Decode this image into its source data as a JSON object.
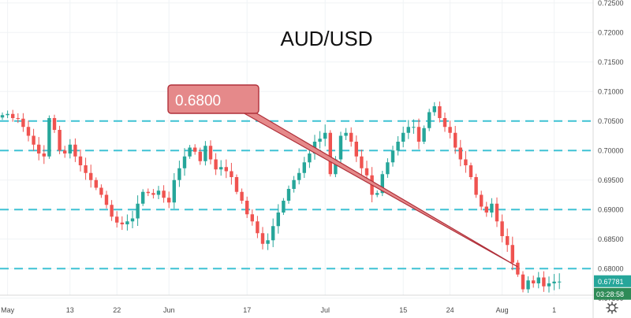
{
  "chart_data": {
    "type": "candlestick",
    "title": "AUD/USD",
    "y_axis_position": "right",
    "ylim": [
      0.6755,
      0.7255
    ],
    "y_ticks": [
      "0.72500",
      "0.72000",
      "0.71500",
      "0.71000",
      "0.70500",
      "0.70000",
      "0.69500",
      "0.69000",
      "0.68500",
      "0.68000",
      "0.67500"
    ],
    "y_tick_values": [
      0.725,
      0.72,
      0.715,
      0.71,
      0.705,
      0.7,
      0.695,
      0.69,
      0.685,
      0.68,
      0.675
    ],
    "x_ticks": [
      "May",
      "13",
      "22",
      "Jun",
      "17",
      "Jul",
      "15",
      "24",
      "Aug",
      "1"
    ],
    "x_tick_bars": [
      1,
      13,
      22,
      32,
      47,
      62,
      77,
      86,
      96,
      106
    ],
    "n_bars": 108,
    "horizontal_levels": [
      0.705,
      0.7,
      0.69,
      0.68
    ],
    "close": [
      0.706,
      0.7062,
      0.7055,
      0.7054,
      0.704,
      0.7025,
      0.701,
      0.6995,
      0.699,
      0.7055,
      0.7035,
      0.7,
      0.6995,
      0.701,
      0.699,
      0.6975,
      0.6962,
      0.695,
      0.6937,
      0.6925,
      0.6908,
      0.6888,
      0.6878,
      0.6875,
      0.688,
      0.6885,
      0.691,
      0.693,
      0.6928,
      0.6925,
      0.6932,
      0.692,
      0.6912,
      0.695,
      0.697,
      0.699,
      0.7005,
      0.6998,
      0.6982,
      0.7008,
      0.6985,
      0.6968,
      0.6972,
      0.6965,
      0.6955,
      0.693,
      0.6915,
      0.6892,
      0.688,
      0.686,
      0.6842,
      0.6848,
      0.6872,
      0.6895,
      0.6915,
      0.6935,
      0.695,
      0.6962,
      0.698,
      0.6995,
      0.7015,
      0.702,
      0.703,
      0.696,
      0.6985,
      0.7025,
      0.703,
      0.7015,
      0.699,
      0.697,
      0.6958,
      0.6925,
      0.6928,
      0.696,
      0.698,
      0.7,
      0.7015,
      0.703,
      0.704,
      0.704,
      0.7015,
      0.7038,
      0.7065,
      0.7075,
      0.7055,
      0.704,
      0.703,
      0.7005,
      0.6985,
      0.6975,
      0.6955,
      0.6925,
      0.6905,
      0.6895,
      0.691,
      0.688,
      0.6855,
      0.684,
      0.681,
      0.679,
      0.6765,
      0.678,
      0.6775,
      0.6785,
      0.677,
      0.6775,
      0.6778,
      0.6778
    ],
    "last_price": "0.67781",
    "countdown": "03:28:58",
    "annotation": {
      "text": "0.6800",
      "from_bar": 20,
      "from_price": 0.7089,
      "to_bar": 99,
      "to_price": 0.6803
    }
  },
  "colors": {
    "up": "#26a69a",
    "down": "#ef5350",
    "level_line": "#3ec2d4",
    "callout_fill": "#e5898a",
    "callout_stroke": "#b0303a",
    "price_tag": "#26a69a",
    "countdown_tag": "#2e8b57"
  },
  "icons": {
    "settings": "gear-icon"
  }
}
